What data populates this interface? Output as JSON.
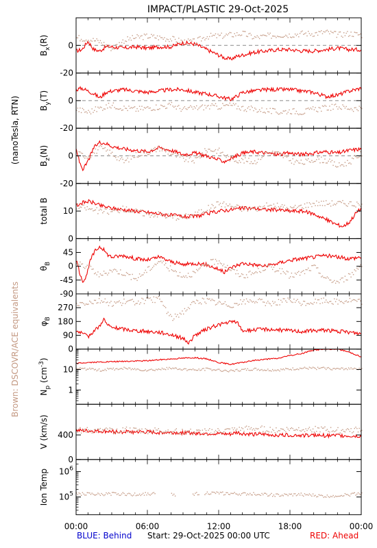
{
  "title": "IMPACT/PLASTIC   29-Oct-2025",
  "side_left": {
    "units": "(nanoTesla, RTN)",
    "equivalents": "Brown: DSCOVR/ACE equivalents"
  },
  "footer": {
    "behind": "BLUE: Behind",
    "start": "Start: 29-Oct-2025 00:00 UTC",
    "ahead": "RED: Ahead"
  },
  "colors": {
    "ahead": "#ee0000",
    "brown": "#c49a84",
    "behind": "#0000cc",
    "axis": "#000000",
    "dash": "#888888"
  },
  "chart_data": [
    {
      "type": "line",
      "ylabel": "Bx(R)",
      "ylabel_main": "B",
      "ylabel_sub": "x",
      "ylabel_tail": "(R)",
      "ylim": [
        -20,
        20
      ],
      "yticks": [
        -20,
        0
      ],
      "zero_line": true,
      "series": [
        {
          "color": "ahead",
          "x": [
            0,
            0.5,
            1,
            1.5,
            2,
            2.5,
            3,
            4,
            5,
            6,
            7,
            8,
            9,
            10,
            11,
            12,
            12.5,
            13,
            13.5,
            14,
            15,
            16,
            17,
            18,
            19,
            20,
            21,
            22,
            23,
            24
          ],
          "y": [
            -4,
            -3,
            3,
            -3,
            -4,
            -1,
            -1,
            -2,
            -1,
            -2,
            -1,
            -1,
            2,
            1,
            -3,
            -7,
            -9,
            -10,
            -8,
            -7,
            -5,
            -4,
            -3,
            -3,
            -4,
            -4,
            -3,
            -2,
            -3,
            -3
          ]
        },
        {
          "color": "brown",
          "x": [
            0,
            1,
            2,
            3,
            4,
            5,
            6,
            7,
            8,
            9,
            10,
            11,
            12,
            13,
            14,
            15,
            16,
            17,
            18,
            19,
            20,
            21,
            22,
            23,
            24
          ],
          "y": [
            6,
            5,
            3,
            -2,
            4,
            6,
            7,
            6,
            5,
            3,
            3,
            7,
            7,
            8,
            9,
            6,
            7,
            8,
            8,
            9,
            9,
            10,
            8,
            9,
            8
          ]
        }
      ]
    },
    {
      "type": "line",
      "ylabel": "By(T)",
      "ylabel_main": "B",
      "ylabel_sub": "y",
      "ylabel_tail": "(T)",
      "ylim": [
        -20,
        20
      ],
      "yticks": [
        -20,
        0
      ],
      "zero_line": true,
      "series": [
        {
          "color": "ahead",
          "x": [
            0,
            0.5,
            1,
            1.5,
            2,
            2.5,
            3,
            4,
            5,
            6,
            7,
            8,
            9,
            10,
            11,
            12,
            12.5,
            13,
            13.5,
            14,
            15,
            16,
            17,
            18,
            19,
            20,
            21,
            22,
            23,
            24
          ],
          "y": [
            8,
            9,
            7,
            5,
            2,
            6,
            7,
            8,
            7,
            6,
            7,
            8,
            8,
            6,
            5,
            3,
            2,
            1,
            3,
            6,
            7,
            8,
            8,
            8,
            7,
            6,
            3,
            4,
            7,
            9
          ]
        },
        {
          "color": "brown",
          "x": [
            0,
            1,
            2,
            3,
            4,
            5,
            6,
            7,
            8,
            9,
            10,
            11,
            12,
            13,
            14,
            15,
            16,
            17,
            18,
            19,
            20,
            21,
            22,
            23,
            24
          ],
          "y": [
            -6,
            -8,
            -5,
            -3,
            -5,
            -6,
            -5,
            -4,
            -3,
            -6,
            -5,
            -4,
            -4,
            -3,
            -5,
            -6,
            -7,
            -8,
            -7,
            -8,
            -6,
            -5,
            -4,
            -5,
            -6
          ]
        }
      ]
    },
    {
      "type": "line",
      "ylabel": "Bz(N)",
      "ylabel_main": "B",
      "ylabel_sub": "z",
      "ylabel_tail": "(N)",
      "ylim": [
        -20,
        20
      ],
      "yticks": [
        -20,
        0
      ],
      "zero_line": true,
      "series": [
        {
          "color": "ahead",
          "x": [
            0,
            0.3,
            0.6,
            1,
            1.5,
            2,
            2.5,
            3,
            4,
            5,
            6,
            7,
            8,
            9,
            10,
            11,
            12,
            12.5,
            13,
            14,
            15,
            16,
            17,
            18,
            19,
            20,
            21,
            22,
            23,
            24
          ],
          "y": [
            5,
            -5,
            -10,
            -4,
            6,
            10,
            9,
            7,
            5,
            4,
            3,
            6,
            4,
            1,
            2,
            0,
            -3,
            -4,
            -2,
            2,
            3,
            2,
            1,
            2,
            1,
            2,
            3,
            2,
            4,
            5
          ]
        },
        {
          "color": "brown",
          "x": [
            0,
            1,
            2,
            3,
            4,
            5,
            6,
            7,
            8,
            9,
            10,
            11,
            12,
            13,
            14,
            15,
            16,
            17,
            18,
            19,
            20,
            21,
            22,
            23,
            24
          ],
          "y": [
            2,
            0,
            6,
            2,
            -4,
            1,
            3,
            6,
            2,
            -2,
            -3,
            5,
            4,
            -2,
            -3,
            -4,
            3,
            2,
            -3,
            -5,
            -2,
            -3,
            -7,
            -4,
            2
          ]
        }
      ]
    },
    {
      "type": "line",
      "ylabel": "total B",
      "ylim": [
        0,
        20
      ],
      "yticks": [
        0,
        10
      ],
      "zero_line": false,
      "series": [
        {
          "color": "ahead",
          "x": [
            0,
            0.5,
            1,
            1.5,
            2,
            3,
            4,
            5,
            6,
            7,
            8,
            9,
            10,
            11,
            12,
            13,
            14,
            15,
            16,
            17,
            18,
            19,
            20,
            21,
            22,
            22.5,
            23,
            23.5,
            24
          ],
          "y": [
            12,
            13,
            13.5,
            13,
            12,
            11,
            10.5,
            10,
            9.5,
            9,
            8.5,
            8,
            8,
            9,
            10,
            10.5,
            11,
            11,
            10.5,
            10.5,
            10,
            10,
            9,
            7,
            5,
            4.5,
            6,
            9,
            11
          ]
        },
        {
          "color": "brown",
          "x": [
            0,
            1,
            2,
            3,
            4,
            5,
            6,
            7,
            8,
            9,
            10,
            11,
            12,
            13,
            14,
            15,
            16,
            17,
            18,
            19,
            20,
            21,
            22,
            23,
            24
          ],
          "y": [
            12,
            11,
            10,
            10,
            11,
            10,
            9,
            9,
            8,
            8,
            9,
            11,
            13,
            12,
            11,
            11,
            12,
            12,
            11,
            12,
            13,
            13,
            13,
            13,
            12
          ]
        }
      ]
    },
    {
      "type": "line",
      "ylabel": "θB",
      "ylabel_main": "θ",
      "ylabel_sub": "B",
      "ylabel_tail": "",
      "ylim": [
        -90,
        90
      ],
      "yticks": [
        -90,
        -45,
        0,
        45
      ],
      "zero_line": false,
      "series": [
        {
          "color": "ahead",
          "x": [
            0,
            0.3,
            0.6,
            0.9,
            1.2,
            1.6,
            2,
            2.3,
            2.6,
            3,
            4,
            5,
            6,
            7,
            8,
            9,
            10,
            11,
            12,
            12.5,
            13,
            14,
            15,
            16,
            17,
            18,
            19,
            20,
            21,
            22,
            23,
            24
          ],
          "y": [
            20,
            -20,
            -50,
            -30,
            20,
            50,
            65,
            55,
            40,
            30,
            35,
            25,
            20,
            30,
            15,
            5,
            10,
            5,
            -10,
            -20,
            -5,
            10,
            5,
            0,
            10,
            20,
            25,
            30,
            35,
            30,
            25,
            30
          ]
        },
        {
          "color": "brown",
          "x": [
            0,
            1,
            2,
            3,
            4,
            5,
            6,
            7,
            8,
            9,
            10,
            11,
            12,
            13,
            14,
            15,
            16,
            17,
            18,
            19,
            20,
            21,
            22,
            23,
            24
          ],
          "y": [
            10,
            0,
            -30,
            -10,
            -20,
            -40,
            -10,
            20,
            -10,
            -30,
            -20,
            10,
            20,
            -10,
            -30,
            -20,
            0,
            -10,
            -30,
            -20,
            0,
            -40,
            -50,
            -30,
            10
          ]
        }
      ]
    },
    {
      "type": "line",
      "ylabel": "φB",
      "ylabel_main": "φ",
      "ylabel_sub": "B",
      "ylabel_tail": "",
      "ylim": [
        0,
        360
      ],
      "yticks": [
        0,
        90,
        180,
        270
      ],
      "zero_line": false,
      "series": [
        {
          "color": "ahead",
          "x": [
            0,
            0.5,
            1,
            1.5,
            2,
            2.3,
            2.6,
            3,
            4,
            5,
            6,
            7,
            8,
            9,
            9.5,
            10,
            11,
            12,
            13,
            13.5,
            14,
            15,
            16,
            17,
            18,
            19,
            20,
            21,
            22,
            23,
            24
          ],
          "y": [
            120,
            100,
            80,
            120,
            150,
            200,
            160,
            140,
            130,
            120,
            115,
            110,
            95,
            70,
            40,
            90,
            130,
            160,
            175,
            180,
            120,
            125,
            130,
            125,
            120,
            115,
            120,
            125,
            115,
            110,
            100
          ]
        },
        {
          "color": "brown",
          "x": [
            0,
            1,
            2,
            3,
            4,
            5,
            6,
            7,
            8,
            9,
            10,
            11,
            12,
            13,
            14,
            15,
            16,
            17,
            18,
            19,
            20,
            21,
            22,
            23,
            24
          ],
          "y": [
            300,
            310,
            320,
            300,
            310,
            310,
            320,
            330,
            200,
            250,
            310,
            320,
            300,
            290,
            310,
            320,
            300,
            310,
            320,
            300,
            310,
            320,
            310,
            320,
            310
          ]
        }
      ]
    },
    {
      "type": "line",
      "ylabel": "Np (cm-3)",
      "ylabel_main": "N",
      "ylabel_sub": "p",
      "ylabel_tail": " (cm",
      "ylabel_sup": "-3",
      "ylabel_close": ")",
      "yscale": "log",
      "ylim": [
        0.2,
        100
      ],
      "yticks": [
        1,
        10
      ],
      "zero_line": false,
      "series": [
        {
          "color": "ahead",
          "x": [
            0,
            1,
            2,
            3,
            4,
            5,
            6,
            7,
            8,
            9,
            10,
            11,
            12,
            13,
            14,
            15,
            16,
            17,
            18,
            19,
            20,
            21,
            22,
            23,
            24
          ],
          "y": [
            20,
            22,
            23,
            24,
            25,
            26,
            27,
            30,
            33,
            36,
            38,
            33,
            22,
            18,
            22,
            28,
            32,
            35,
            48,
            60,
            90,
            100,
            100,
            70,
            40
          ]
        },
        {
          "color": "brown",
          "x": [
            0,
            1,
            2,
            3,
            4,
            5,
            6,
            7,
            8,
            9,
            10,
            11,
            12,
            13,
            14,
            15,
            16,
            17,
            18,
            19,
            20,
            21,
            22,
            23,
            24
          ],
          "y": [
            12,
            11,
            10,
            11,
            12,
            11,
            10,
            11,
            12,
            11,
            10,
            11,
            10,
            9,
            10,
            11,
            10,
            10,
            11,
            12,
            12,
            12,
            11,
            12,
            12
          ]
        }
      ]
    },
    {
      "type": "line",
      "ylabel": "V (km/s)",
      "ylim": [
        0,
        900
      ],
      "yticks": [
        0,
        400
      ],
      "zero_line": false,
      "series": [
        {
          "color": "ahead",
          "x": [
            0,
            1,
            2,
            3,
            4,
            5,
            6,
            7,
            8,
            9,
            10,
            11,
            12,
            13,
            13.5,
            14,
            15,
            16,
            17,
            18,
            19,
            20,
            21,
            22,
            23,
            24
          ],
          "y": [
            470,
            465,
            460,
            455,
            450,
            450,
            445,
            440,
            440,
            435,
            430,
            425,
            420,
            410,
            440,
            420,
            410,
            405,
            400,
            400,
            395,
            395,
            390,
            390,
            385,
            380
          ]
        },
        {
          "color": "brown",
          "x": [
            0,
            1,
            2,
            3,
            4,
            5,
            6,
            7,
            8,
            9,
            10,
            11,
            12,
            13,
            14,
            15,
            16,
            17,
            18,
            19,
            20,
            21,
            22,
            23,
            24
          ],
          "y": [
            490,
            480,
            470,
            480,
            490,
            480,
            470,
            480,
            470,
            460,
            450,
            460,
            470,
            480,
            500,
            510,
            500,
            490,
            500,
            510,
            500,
            490,
            480,
            490,
            500
          ]
        }
      ]
    },
    {
      "type": "scatter",
      "ylabel": "Ion Temp",
      "yscale": "log",
      "ylim": [
        20000,
        3000000
      ],
      "yticks": [
        100000,
        1000000
      ],
      "ytick_labels": [
        "10^5",
        "10^6"
      ],
      "zero_line": false,
      "series": [
        {
          "color": "brown",
          "x": [
            0,
            1,
            2,
            3,
            4,
            5,
            6,
            7,
            8,
            9,
            10,
            11,
            12,
            13,
            14,
            15,
            16,
            17,
            18,
            19,
            20,
            21,
            22,
            23,
            24
          ],
          "y": [
            140000,
            135000,
            130000,
            140000,
            135000,
            130000,
            140000,
            135000,
            130000,
            125000,
            140000,
            150000,
            145000,
            140000,
            135000,
            140000,
            130000,
            120000,
            125000,
            130000,
            120000,
            110000,
            120000,
            130000,
            150000
          ]
        }
      ]
    }
  ],
  "xaxis": {
    "ticks": [
      0,
      6,
      12,
      18,
      24
    ],
    "tick_labels": [
      "00:00",
      "06:00",
      "12:00",
      "18:00",
      "00:00"
    ],
    "minor_step": 1
  }
}
